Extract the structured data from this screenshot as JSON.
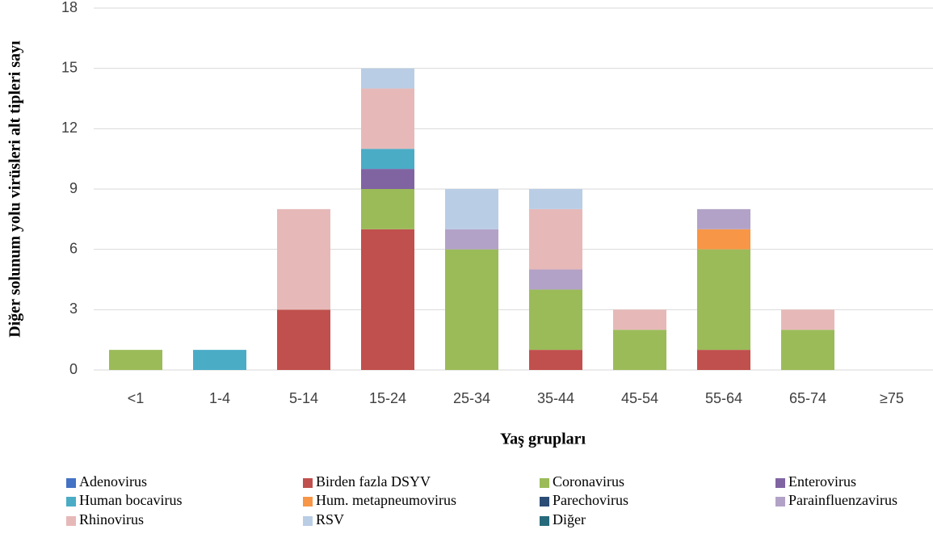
{
  "chart_data": {
    "type": "stacked_bar",
    "x_label": "Yaş grupları",
    "y_label": "Diğer solunum yolu virüsleri alt tipleri sayı",
    "categories": [
      "<1",
      "1-4",
      "5-14",
      "15-24",
      "25-34",
      "35-44",
      "45-54",
      "55-64",
      "65-74",
      "≥75"
    ],
    "ylim": [
      0,
      18
    ],
    "yticks": [
      0,
      3,
      6,
      9,
      12,
      15,
      18
    ],
    "grid": true,
    "series": [
      {
        "name": "Adenovirus",
        "color": "#4472c4",
        "values": [
          0,
          0,
          0,
          0,
          0,
          0,
          0,
          0,
          0,
          0
        ]
      },
      {
        "name": "Birden fazla DSYV",
        "color": "#c0504d",
        "values": [
          0,
          0,
          3,
          7,
          0,
          1,
          0,
          1,
          0,
          0
        ]
      },
      {
        "name": "Coronavirus",
        "color": "#9bbb59",
        "values": [
          1,
          0,
          0,
          2,
          6,
          3,
          2,
          5,
          2,
          0
        ]
      },
      {
        "name": "Enterovirus",
        "color": "#8064a2",
        "values": [
          0,
          0,
          0,
          1,
          0,
          0,
          0,
          0,
          0,
          0
        ]
      },
      {
        "name": "Human bocavirus",
        "color": "#4bacc6",
        "values": [
          0,
          1,
          0,
          1,
          0,
          0,
          0,
          0,
          0,
          0
        ]
      },
      {
        "name": "Hum. metapneumovirus",
        "color": "#f79646",
        "values": [
          0,
          0,
          0,
          0,
          0,
          0,
          0,
          1,
          0,
          0
        ]
      },
      {
        "name": "Parechovirus",
        "color": "#2c4d75",
        "values": [
          0,
          0,
          0,
          0,
          0,
          0,
          0,
          0,
          0,
          0
        ]
      },
      {
        "name": "Parainfluenzavirus",
        "color": "#b3a2c7",
        "values": [
          0,
          0,
          0,
          0,
          1,
          1,
          0,
          1,
          0,
          0
        ]
      },
      {
        "name": "Rhinovirus",
        "color": "#e6b9b8",
        "values": [
          0,
          0,
          5,
          3,
          0,
          3,
          1,
          0,
          1,
          0
        ]
      },
      {
        "name": "RSV",
        "color": "#b9cde5",
        "values": [
          0,
          0,
          0,
          1,
          2,
          1,
          0,
          0,
          0,
          0
        ]
      },
      {
        "name": "Diğer",
        "color": "#276a7c",
        "values": [
          0,
          0,
          0,
          0,
          0,
          0,
          0,
          0,
          0,
          0
        ]
      }
    ]
  }
}
